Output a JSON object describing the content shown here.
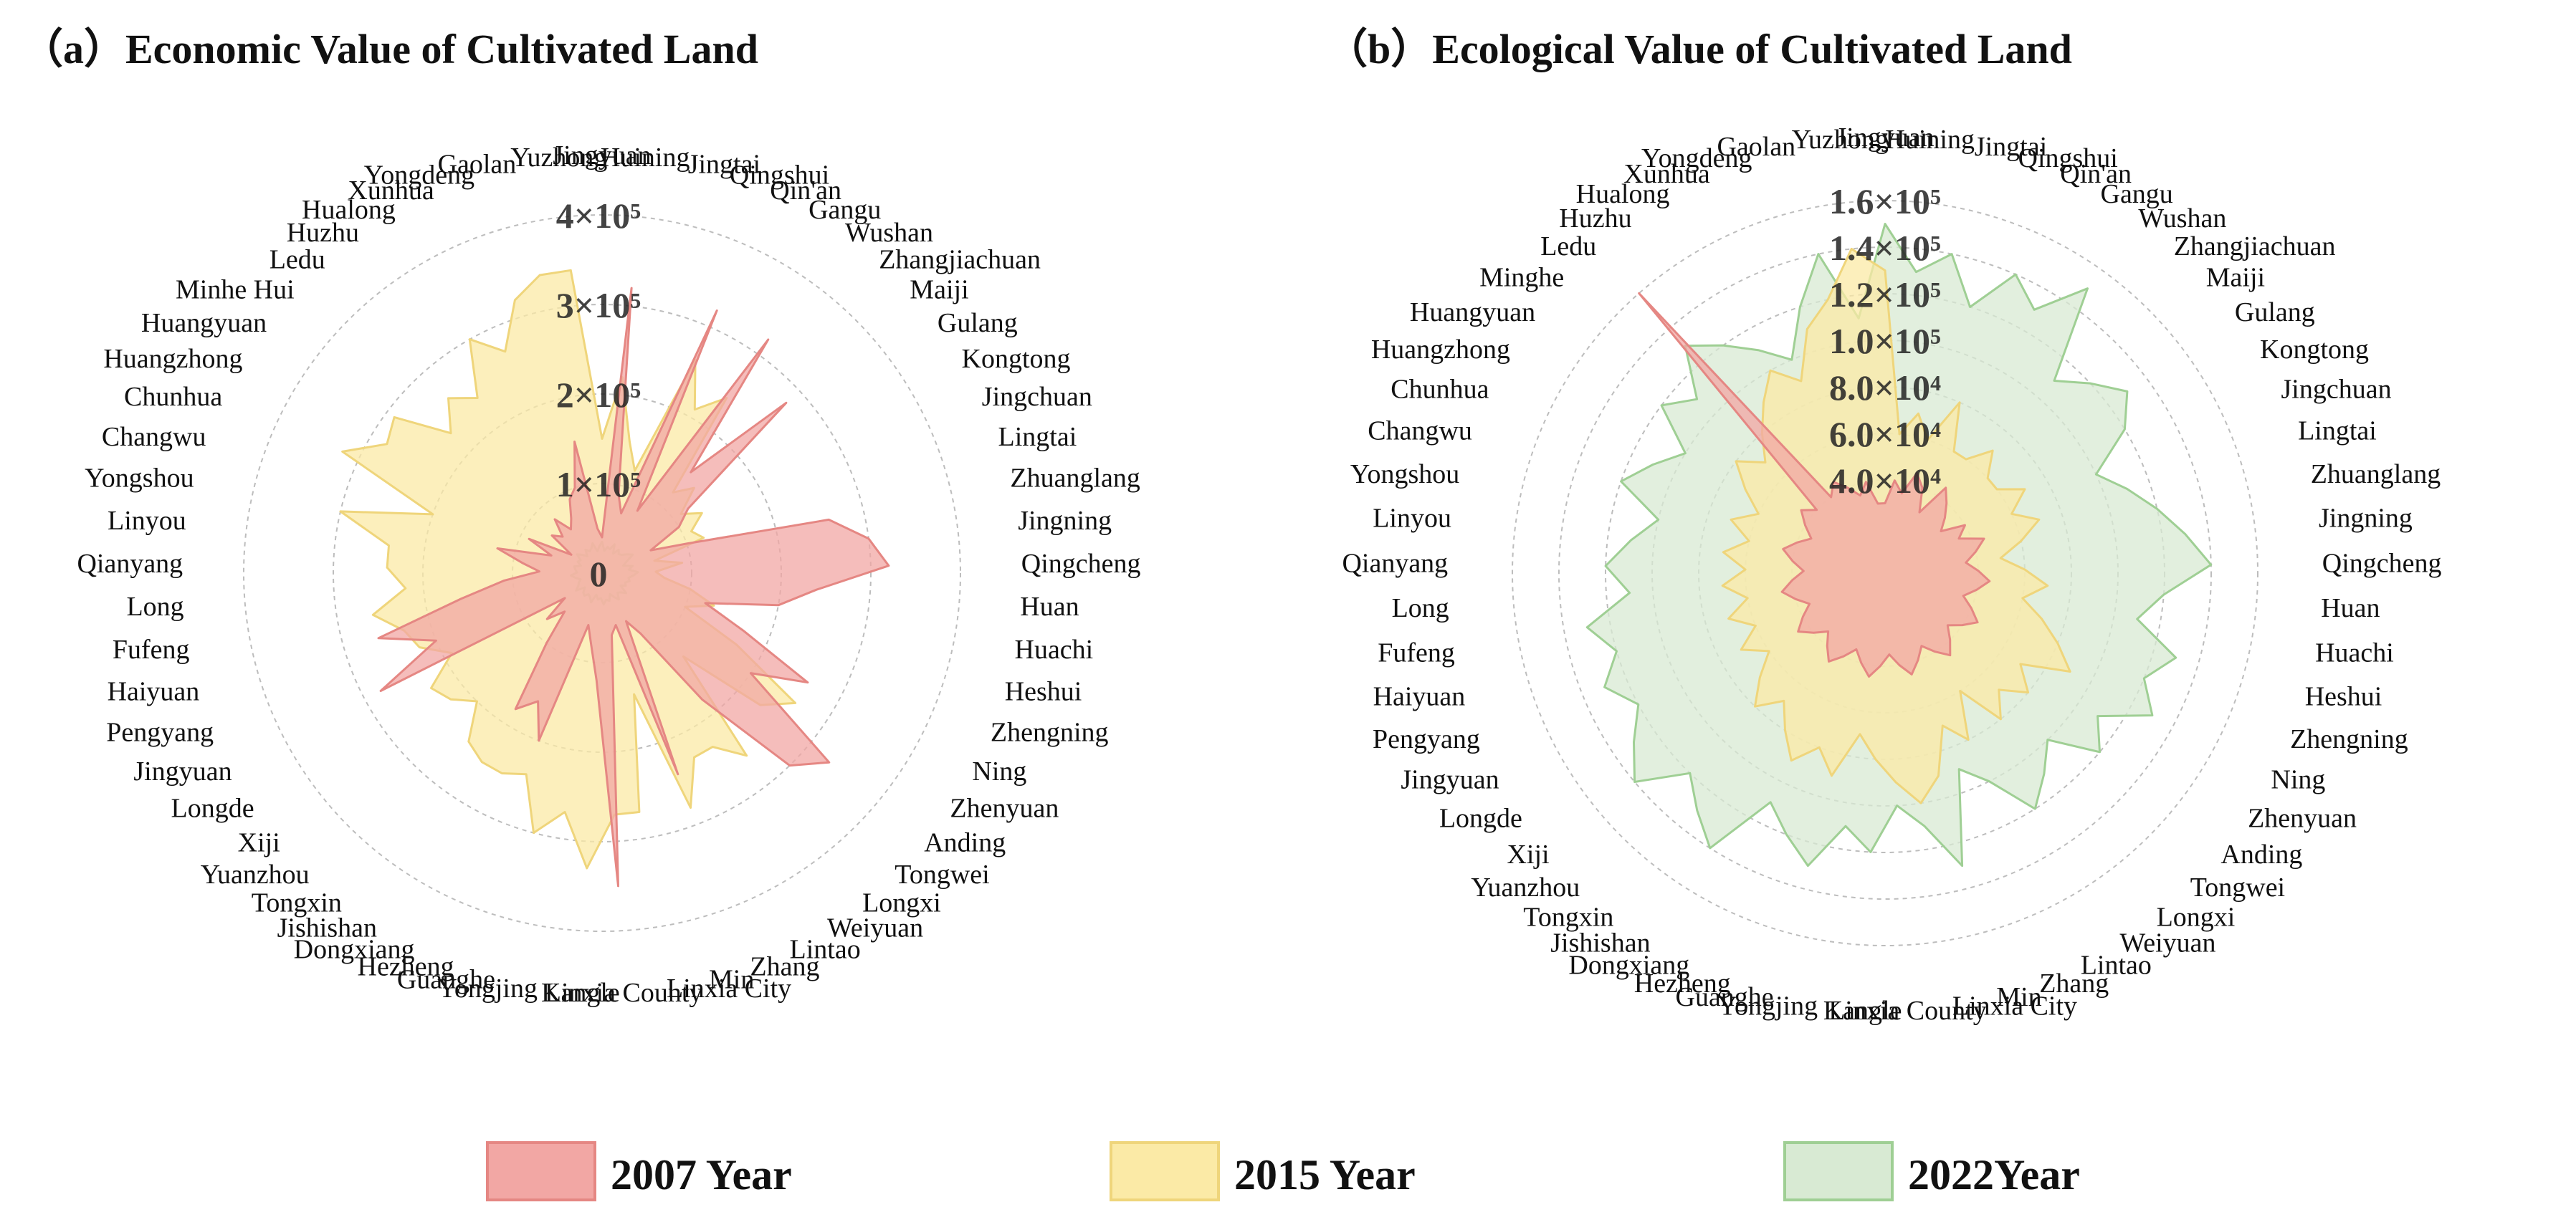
{
  "chart_data": [
    {
      "type": "radar",
      "title": "（a）Economic Value of Cultivated Land",
      "rlim": [
        0,
        400000
      ],
      "ticks": [
        0,
        100000,
        200000,
        300000,
        400000
      ],
      "tick_labels": [
        "0",
        "1×10⁵",
        "2×10⁵",
        "3×10⁵",
        "4×10⁵"
      ],
      "categories": [
        "Jingyuan",
        "Huining",
        "Jingtai",
        "Qingshui",
        "Qin'an",
        "Gangu",
        "Wushan",
        "Zhangjiachuan",
        "Maiji",
        "Gulang",
        "Kongtong",
        "Jingchuan",
        "Lingtai",
        "Zhuanglang",
        "Jingning",
        "Qingcheng",
        "Huan",
        "Huachi",
        "Heshui",
        "Zhengning",
        "Ning",
        "Zhenyuan",
        "Anding",
        "Tongwei",
        "Longxi",
        "Weiyuan",
        "Lintao",
        "Zhang",
        "Min",
        "Linxia City",
        "Linxia County",
        "Kangle",
        "Yongjing",
        "Guanghe",
        "Hezheng",
        "Dongxiang",
        "Jishishan",
        "Tongxin",
        "Yuanzhou",
        "Xiji",
        "Longde",
        "Jingyuan",
        "Pengyang",
        "Haiyuan",
        "Fufeng",
        "Long",
        "Qianyang",
        "Linyou",
        "Yongshou",
        "Changwu",
        "Chunhua",
        "Huangzhong",
        "Huangyuan",
        "Minhe Hui",
        "Ledu",
        "Huzhu",
        "Hualong",
        "Xunhua",
        "Yongdeng",
        "Gaolan",
        "Yuzhong"
      ],
      "series": [
        {
          "name": "2022Year",
          "color": "#d8ead3",
          "stroke": "#9fcf94",
          "values": [
            35000,
            25000,
            30000,
            28000,
            35000,
            25000,
            32000,
            28000,
            30000,
            35000,
            40000,
            30000,
            25000,
            35000,
            30000,
            40000,
            35000,
            30000,
            32000,
            28000,
            30000,
            25000,
            35000,
            30000,
            28000,
            35000,
            30000,
            25000,
            32000,
            30000,
            35000,
            28000,
            30000,
            25000,
            35000,
            30000,
            28000,
            32000,
            30000,
            25000,
            35000,
            30000,
            28000,
            25000,
            30000,
            35000,
            28000,
            30000,
            32000,
            25000,
            30000,
            28000,
            35000,
            30000,
            25000,
            32000,
            28000,
            30000,
            35000,
            25000,
            30000
          ]
        },
        {
          "name": "2015 Year",
          "color": "#fbeaa6",
          "stroke": "#efd57b",
          "values": [
            150000,
            220000,
            150000,
            120000,
            260000,
            210000,
            240000,
            120000,
            140000,
            110000,
            130000,
            110000,
            120000,
            60000,
            90000,
            60000,
            70000,
            100000,
            130000,
            100000,
            170000,
            260000,
            230000,
            130000,
            260000,
            230000,
            230000,
            280000,
            140000,
            270000,
            270000,
            330000,
            270000,
            300000,
            240000,
            250000,
            250000,
            240000,
            200000,
            220000,
            230000,
            190000,
            220000,
            230000,
            260000,
            220000,
            240000,
            240000,
            300000,
            200000,
            320000,
            280000,
            290000,
            230000,
            260000,
            240000,
            300000,
            270000,
            320000,
            340000,
            340000
          ]
        },
        {
          "name": "2007 Year",
          "color": "#f2a7a4",
          "stroke": "#e58783",
          "values": [
            40000,
            320000,
            90000,
            70000,
            320000,
            80000,
            320000,
            150000,
            280000,
            120000,
            100000,
            60000,
            100000,
            260000,
            300000,
            320000,
            240000,
            200000,
            120000,
            170000,
            260000,
            200000,
            330000,
            300000,
            180000,
            80000,
            60000,
            240000,
            60000,
            70000,
            350000,
            120000,
            80000,
            60000,
            200000,
            160000,
            180000,
            100000,
            60000,
            80000,
            50000,
            280000,
            200000,
            260000,
            160000,
            110000,
            70000,
            90000,
            120000,
            60000,
            90000,
            40000,
            70000,
            60000,
            80000,
            60000,
            70000,
            90000,
            100000,
            150000,
            50000
          ]
        }
      ]
    },
    {
      "type": "radar",
      "title": "（b）Ecological Value of Cultivated Land",
      "rlim": [
        0,
        160000
      ],
      "ticks": [
        40000,
        60000,
        80000,
        100000,
        120000,
        140000,
        160000
      ],
      "tick_labels": [
        "4.0×10⁴",
        "6.0×10⁴",
        "8.0×10⁴",
        "1.0×10⁵",
        "1.2×10⁵",
        "1.4×10⁵",
        "1.6×10⁵"
      ],
      "categories": [
        "Jingyuan",
        "Huining",
        "Jingtai",
        "Qingshui",
        "Qin'an",
        "Gangu",
        "Wushan",
        "Zhangjiachuan",
        "Maiji",
        "Gulang",
        "Kongtong",
        "Jingchuan",
        "Lingtai",
        "Zhuanglang",
        "Jingning",
        "Qingcheng",
        "Huan",
        "Huachi",
        "Heshui",
        "Zhengning",
        "Ning",
        "Zhenyuan",
        "Anding",
        "Tongwei",
        "Longxi",
        "Weiyuan",
        "Lintao",
        "Zhang",
        "Min",
        "Linxia City",
        "Linxia County",
        "Kangle",
        "Yongjing",
        "Guanghe",
        "Hezheng",
        "Dongxiang",
        "Jishishan",
        "Tongxin",
        "Yuanzhou",
        "Xiji",
        "Longde",
        "Jingyuan",
        "Pengyang",
        "Haiyuan",
        "Fufeng",
        "Long",
        "Qianyang",
        "Linyou",
        "Yongshou",
        "Changwu",
        "Chunhua",
        "Huangzhong",
        "Huangyuan",
        "Minghe",
        "Ledu",
        "Huzhu",
        "Hualong",
        "Xunhua",
        "Yongdeng",
        "Gaolan",
        "Yuzhong"
      ],
      "series": [
        {
          "name": "2022Year",
          "color": "#d8ead3",
          "stroke": "#9fcf94",
          "values": [
            150000,
            130000,
            140000,
            120000,
            140000,
            130000,
            150000,
            110000,
            120000,
            130000,
            120000,
            100000,
            110000,
            120000,
            130000,
            140000,
            120000,
            110000,
            130000,
            120000,
            130000,
            110000,
            120000,
            100000,
            110000,
            120000,
            100000,
            90000,
            130000,
            110000,
            100000,
            120000,
            110000,
            130000,
            120000,
            110000,
            140000,
            130000,
            120000,
            140000,
            130000,
            120000,
            130000,
            120000,
            130000,
            110000,
            120000,
            110000,
            100000,
            120000,
            110000,
            100000,
            120000,
            110000,
            130000,
            120000,
            110000,
            100000,
            120000,
            140000,
            110000
          ]
        },
        {
          "name": "2015 Year",
          "color": "#fbeaa6",
          "stroke": "#efd57b",
          "values": [
            130000,
            60000,
            70000,
            60000,
            80000,
            60000,
            60000,
            70000,
            60000,
            60000,
            70000,
            60000,
            70000,
            60000,
            50000,
            60000,
            70000,
            60000,
            70000,
            80000,
            90000,
            70000,
            80000,
            70000,
            80000,
            60000,
            80000,
            70000,
            90000,
            100000,
            90000,
            80000,
            70000,
            90000,
            80000,
            90000,
            80000,
            70000,
            80000,
            70000,
            60000,
            70000,
            60000,
            70000,
            60000,
            70000,
            60000,
            70000,
            60000,
            70000,
            60000,
            70000,
            80000,
            70000,
            80000,
            90000,
            100000,
            90000,
            110000,
            120000,
            140000
          ]
        },
        {
          "name": "2007 Year",
          "color": "#f2a7a4",
          "stroke": "#e58783",
          "values": [
            30000,
            40000,
            35000,
            45000,
            40000,
            30000,
            45000,
            40000,
            35000,
            30000,
            40000,
            35000,
            45000,
            40000,
            35000,
            40000,
            45000,
            40000,
            35000,
            40000,
            45000,
            40000,
            35000,
            40000,
            45000,
            40000,
            35000,
            40000,
            45000,
            40000,
            35000,
            40000,
            45000,
            40000,
            35000,
            40000,
            45000,
            40000,
            35000,
            40000,
            45000,
            40000,
            35000,
            40000,
            45000,
            40000,
            35000,
            40000,
            45000,
            40000,
            35000,
            40000,
            45000,
            40000,
            160000,
            40000,
            45000,
            40000,
            35000,
            40000,
            30000
          ]
        }
      ]
    }
  ],
  "legend": [
    {
      "label": "2007 Year",
      "color": "#f2a7a4",
      "stroke": "#e58783"
    },
    {
      "label": "2015 Year",
      "color": "#fbeaa6",
      "stroke": "#efd57b"
    },
    {
      "label": "2022Year",
      "color": "#d8ead3",
      "stroke": "#9fcf94"
    }
  ]
}
